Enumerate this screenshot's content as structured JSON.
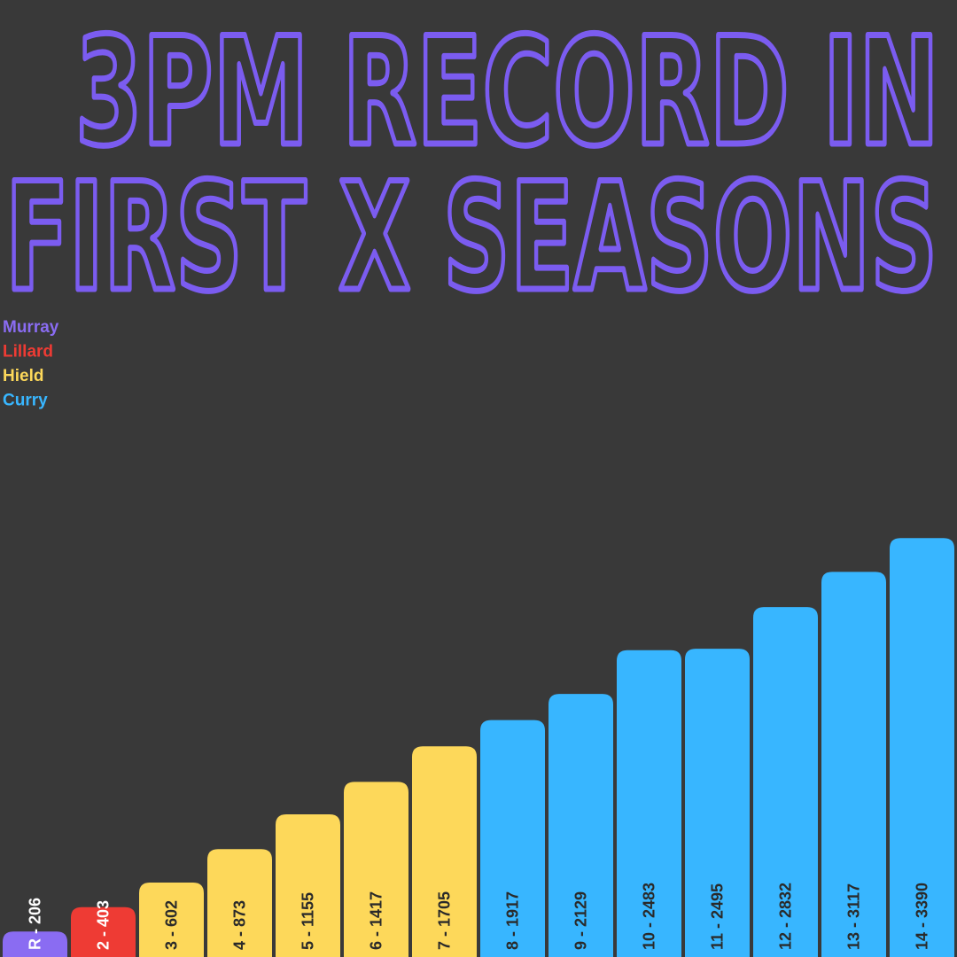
{
  "chart_data": {
    "type": "bar",
    "title": [
      "3PM RECORD  IN",
      "FIRST X SEASONS"
    ],
    "categories": [
      "R - 206",
      "2 - 403",
      "3 - 602",
      "4 - 873",
      "5 - 1155",
      "6 - 1417",
      "7 - 1705",
      "8 - 1917",
      "9 - 2129",
      "10 - 2483",
      "11 - 2495",
      "12 - 2832",
      "13 - 3117",
      "14 - 3390"
    ],
    "series": [
      {
        "name": "Murray",
        "color": "#8a6cf2",
        "values": [
          206,
          null,
          null,
          null,
          null,
          null,
          null,
          null,
          null,
          null,
          null,
          null,
          null,
          null
        ]
      },
      {
        "name": "Lillard",
        "color": "#ee3b34",
        "values": [
          null,
          403,
          null,
          null,
          null,
          null,
          null,
          null,
          null,
          null,
          null,
          null,
          null,
          null
        ]
      },
      {
        "name": "Hield",
        "color": "#fdd85a",
        "values": [
          null,
          null,
          602,
          873,
          1155,
          1417,
          1705,
          null,
          null,
          null,
          null,
          null,
          null,
          null
        ]
      },
      {
        "name": "Curry",
        "color": "#38b6ff",
        "values": [
          null,
          null,
          null,
          null,
          null,
          null,
          null,
          1917,
          2129,
          2483,
          2495,
          2832,
          3117,
          3390
        ]
      }
    ],
    "ylim": [
      0,
      3600
    ],
    "title_color": "#7b5cf0"
  }
}
